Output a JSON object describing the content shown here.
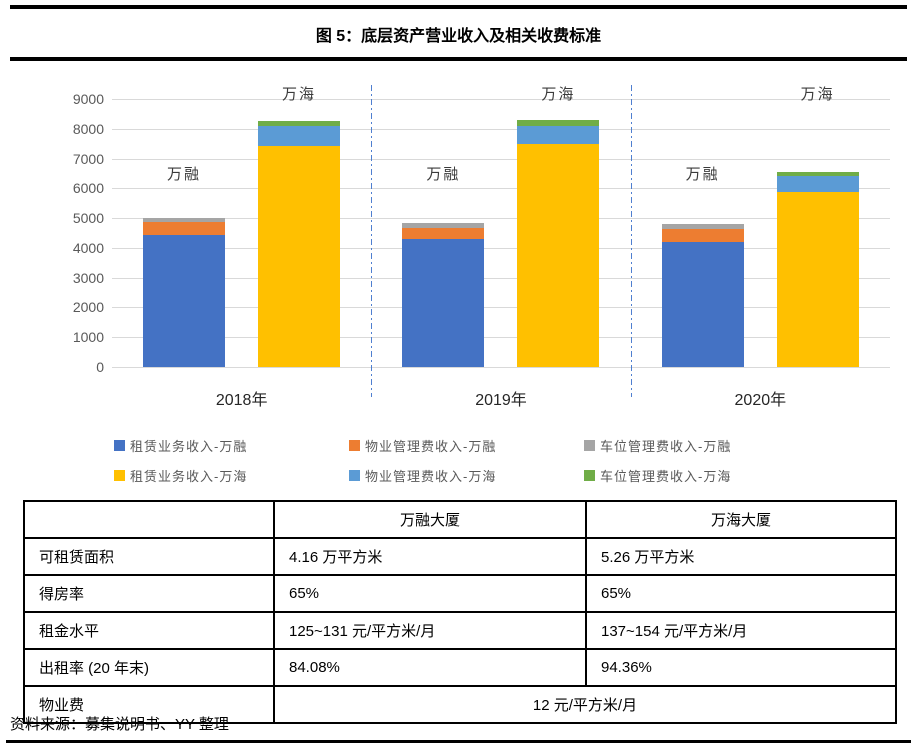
{
  "page": {
    "title": "图 5：底层资产营业收入及相关收费标准",
    "source_note": "资料来源：募集说明书、YY 整理"
  },
  "chart_data": {
    "type": "bar",
    "stacked": true,
    "categories": [
      "2018年",
      "2019年",
      "2020年"
    ],
    "ylim": [
      0,
      9000
    ],
    "yticks": [
      0,
      1000,
      2000,
      3000,
      4000,
      5000,
      6000,
      7000,
      8000,
      9000
    ],
    "grid": true,
    "legend_position": "bottom",
    "colors": {
      "blue": "#4472C4",
      "orange": "#ED7D31",
      "gray": "#A5A5A5",
      "yellow": "#FFC000",
      "lightblue": "#5B9BD5",
      "green": "#70AD47",
      "separator": "#4F7FD0",
      "gridline": "#D9D9D9",
      "axis_text": "#595959"
    },
    "bars": [
      {
        "building": "万融",
        "segments": [
          {
            "name": "租赁业务收入-万融",
            "color_key": "blue",
            "values": [
              4431,
              4284,
              4198
            ],
            "labels": [
              "4, 431",
              "4, 284",
              "4, 198"
            ]
          },
          {
            "name": "物业管理费收入-万融",
            "color_key": "orange",
            "values": [
              455,
              390,
              430
            ]
          },
          {
            "name": "车位管理费收入-万融",
            "color_key": "gray",
            "values": [
              115,
              165,
              185
            ]
          }
        ]
      },
      {
        "building": "万海",
        "segments": [
          {
            "name": "租赁业务收入-万海",
            "color_key": "yellow",
            "values": [
              7436,
              7473,
              5871
            ],
            "labels": [
              "7, 436",
              "7, 473",
              "5, 871"
            ]
          },
          {
            "name": "物业管理费收入-万海",
            "color_key": "lightblue",
            "values": [
              645,
              610,
              555
            ]
          },
          {
            "name": "车位管理费收入-万海",
            "color_key": "green",
            "values": [
              185,
              220,
              125
            ]
          }
        ]
      }
    ],
    "legend": [
      {
        "label": "租赁业务收入-万融",
        "color_key": "blue"
      },
      {
        "label": "物业管理费收入-万融",
        "color_key": "orange"
      },
      {
        "label": "车位管理费收入-万融",
        "color_key": "gray"
      },
      {
        "label": "租赁业务收入-万海",
        "color_key": "yellow"
      },
      {
        "label": "物业管理费收入-万海",
        "color_key": "lightblue"
      },
      {
        "label": "车位管理费收入-万海",
        "color_key": "green"
      }
    ]
  },
  "table": {
    "header": [
      "",
      "万融大厦",
      "万海大厦"
    ],
    "rows": [
      [
        "可租赁面积",
        "4.16 万平方米",
        "5.26 万平方米"
      ],
      [
        "得房率",
        "65%",
        "65%"
      ],
      [
        "租金水平",
        "125~131 元/平方米/月",
        "137~154 元/平方米/月"
      ],
      [
        "出租率 (20 年末)",
        "84.08%",
        "94.36%"
      ]
    ],
    "span_row": {
      "label": "物业费",
      "value": "12 元/平方米/月"
    }
  }
}
